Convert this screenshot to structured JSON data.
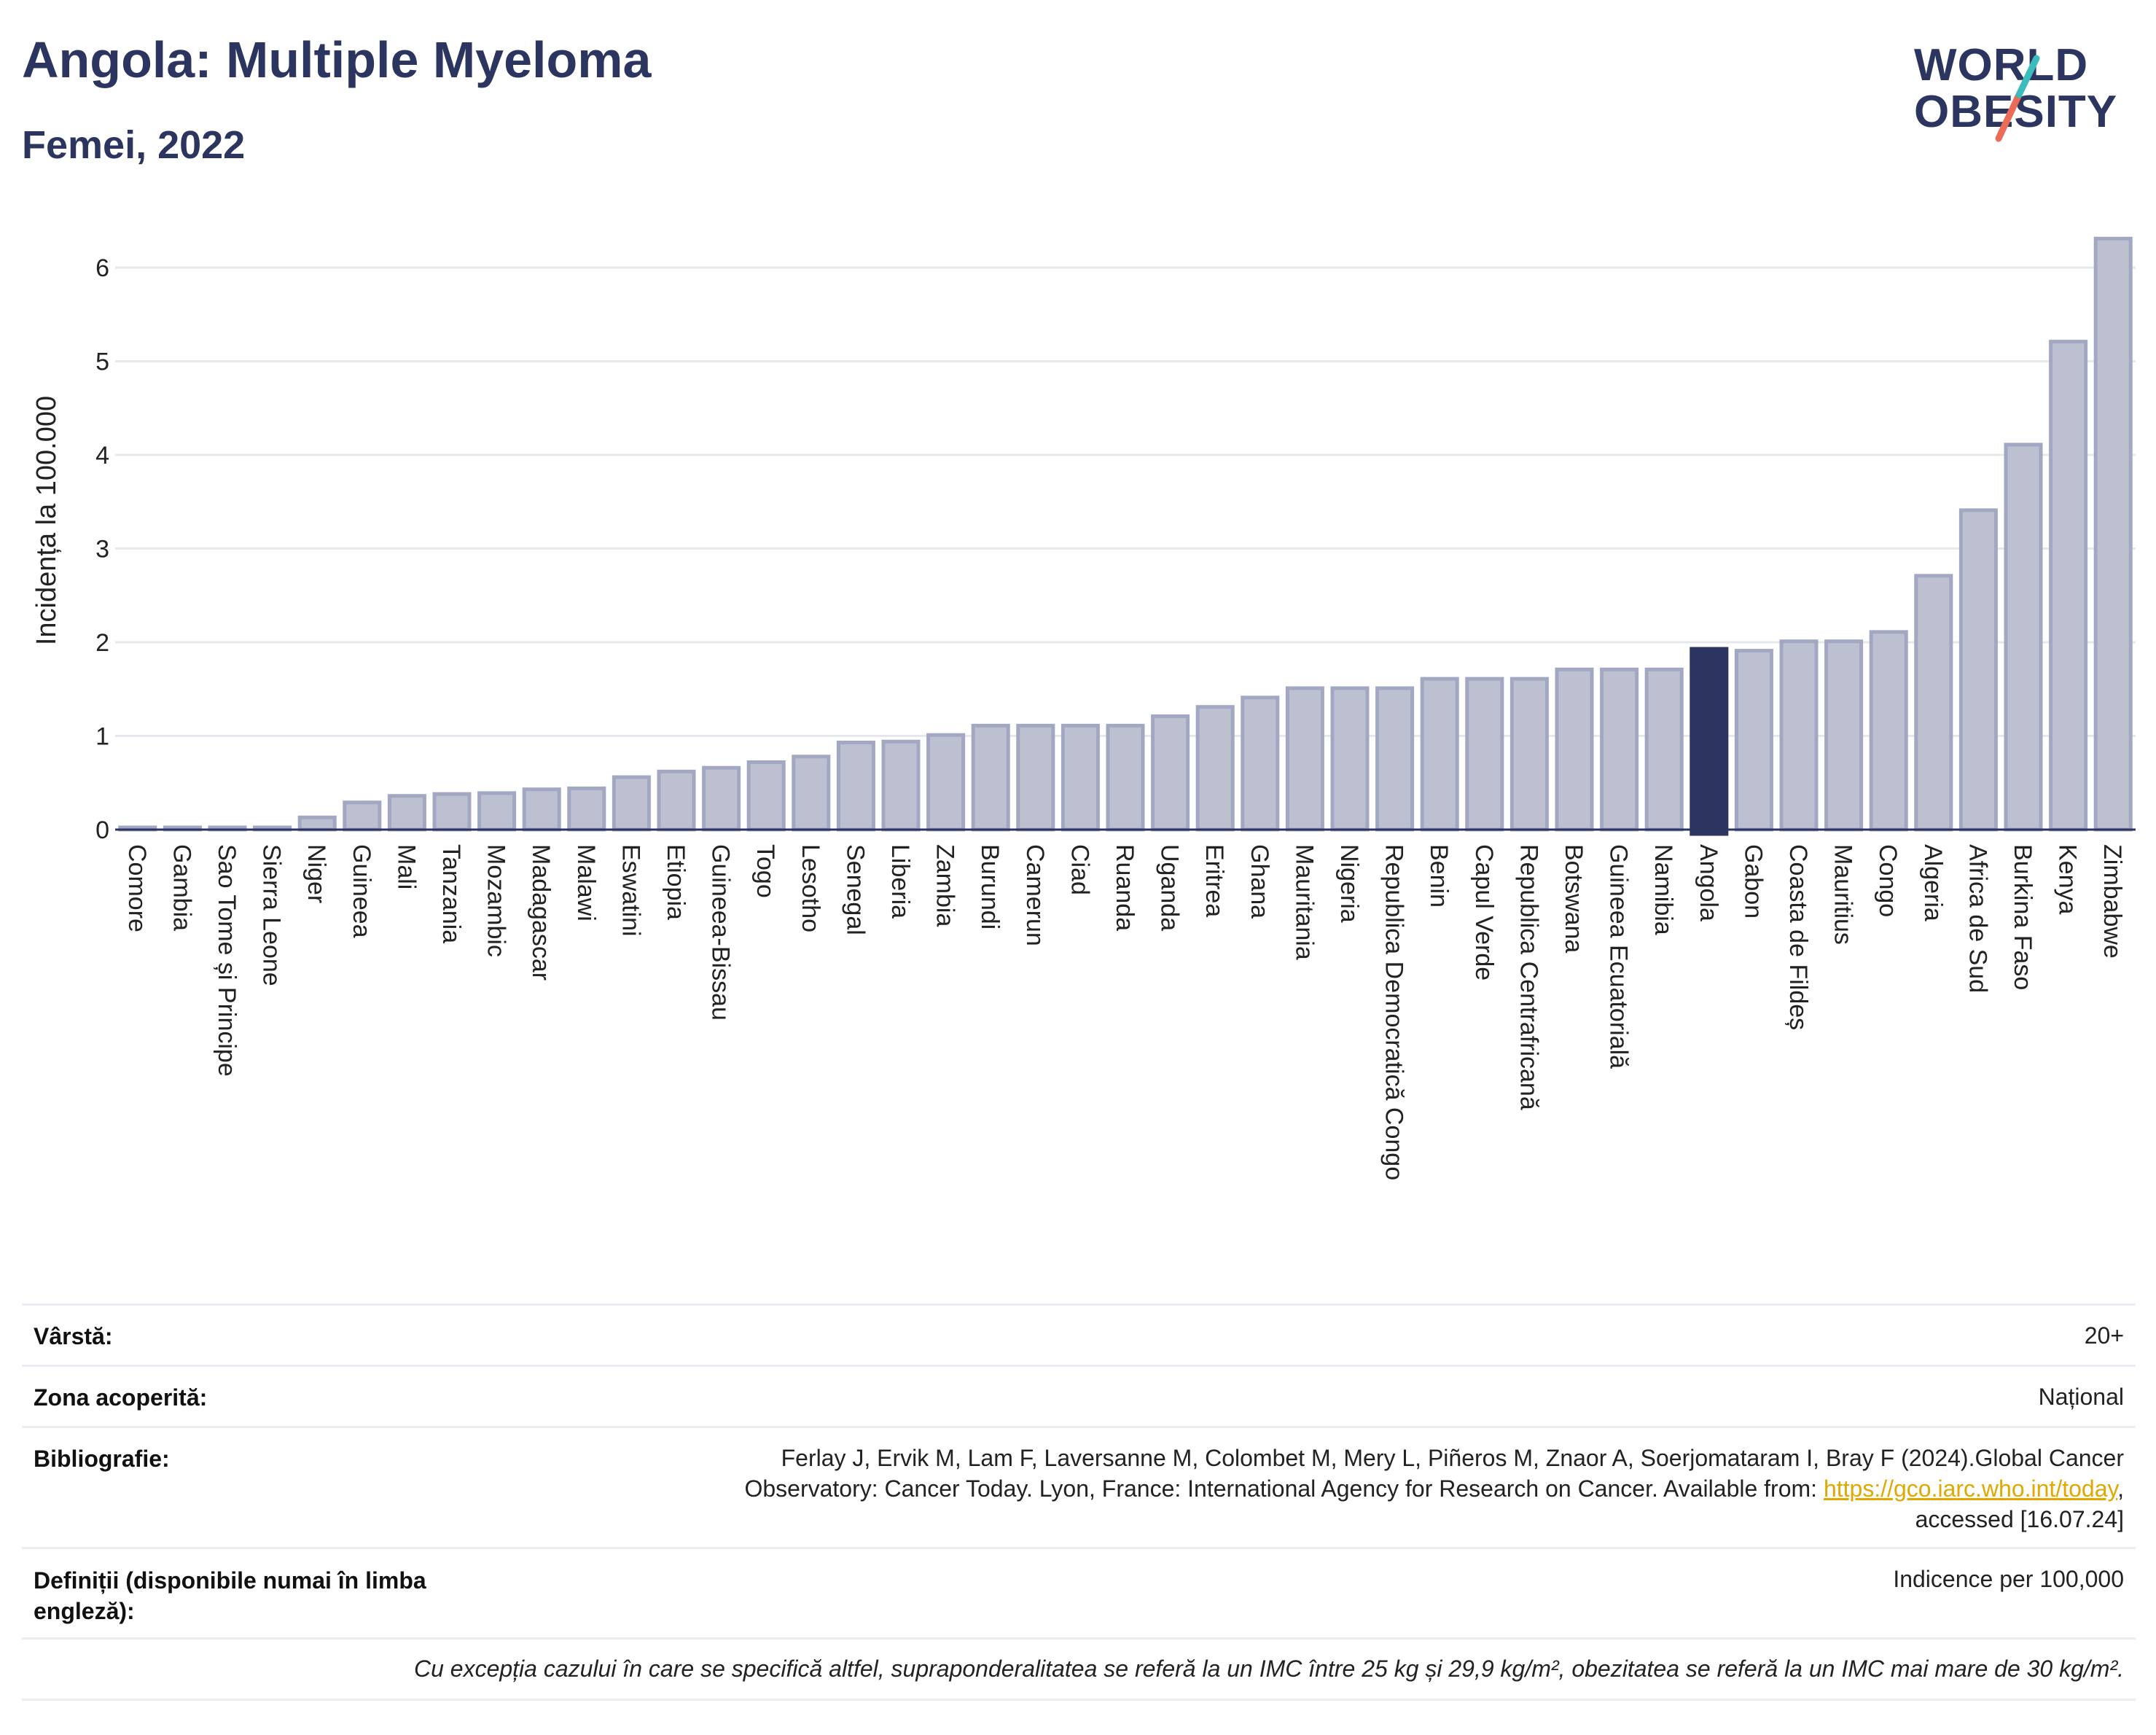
{
  "header": {
    "title": "Angola: Multiple Myeloma",
    "subtitle": "Femei, 2022",
    "logo_line1": "WORLD",
    "logo_line2": "OBESITY"
  },
  "colors": {
    "bar": "#bcc0d0",
    "bar_border": "#a3a8c2",
    "highlight": "#2b3560",
    "grid": "#e6e8ee",
    "accent_teal": "#3cbcbc",
    "accent_coral": "#ec6b57"
  },
  "chart_data": {
    "type": "bar",
    "ylabel": "Incidența la 100.000",
    "xlabel": "",
    "ylim": [
      0,
      6.6
    ],
    "yticks": [
      0,
      1,
      2,
      3,
      4,
      5,
      6
    ],
    "grid": true,
    "highlight": "Angola",
    "categories": [
      "Comore",
      "Gambia",
      "Sao Tome și Principe",
      "Sierra Leone",
      "Niger",
      "Guineea",
      "Mali",
      "Tanzania",
      "Mozambic",
      "Madagascar",
      "Malawi",
      "Eswatini",
      "Etiopia",
      "Guineea-Bissau",
      "Togo",
      "Lesotho",
      "Senegal",
      "Liberia",
      "Zambia",
      "Burundi",
      "Camerun",
      "Ciad",
      "Ruanda",
      "Uganda",
      "Eritrea",
      "Ghana",
      "Mauritania",
      "Nigeria",
      "Republica Democratică Congo",
      "Benin",
      "Capul Verde",
      "Republica Centrafricană",
      "Botswana",
      "Guineea Ecuatorială",
      "Namibia",
      "Angola",
      "Gabon",
      "Coasta de Fildeș",
      "Mauritius",
      "Congo",
      "Algeria",
      "Africa de Sud",
      "Burkina Faso",
      "Kenya",
      "Zimbabwe"
    ],
    "values": [
      0.02,
      0.02,
      0.02,
      0.02,
      0.13,
      0.29,
      0.36,
      0.38,
      0.39,
      0.43,
      0.44,
      0.56,
      0.62,
      0.66,
      0.72,
      0.78,
      0.93,
      0.94,
      1.01,
      1.11,
      1.11,
      1.11,
      1.11,
      1.21,
      1.31,
      1.41,
      1.51,
      1.51,
      1.51,
      1.61,
      1.61,
      1.61,
      1.71,
      1.71,
      1.71,
      1.93,
      1.91,
      2.01,
      2.01,
      2.11,
      2.71,
      3.41,
      4.11,
      5.21,
      6.31
    ]
  },
  "info": {
    "age_label": "Vârstă:",
    "age_value": "20+",
    "area_label": "Zona acoperită:",
    "area_value": "Național",
    "bib_label": "Bibliografie:",
    "bib_text_1": "Ferlay J, Ervik M, Lam F, Laversanne M, Colombet M, Mery L, Piñeros M, Znaor A, Soerjomataram I, Bray F (2024).Global Cancer",
    "bib_text_2": "Observatory: Cancer Today. Lyon, France: International Agency for Research on Cancer. Available from: ",
    "bib_link": "https://gco.iarc.who.int/today",
    "bib_text_3": ",",
    "bib_text_4": "accessed [16.07.24]",
    "def_label": "Definiții (disponibile numai în limba engleză):",
    "def_value": "Indicence per 100,000",
    "note": "Cu excepția cazului în care se specifică altfel, supraponderalitatea se referă la un IMC între 25 kg și 29,9 kg/m², obezitatea se referă la un IMC mai mare de 30 kg/m²."
  }
}
